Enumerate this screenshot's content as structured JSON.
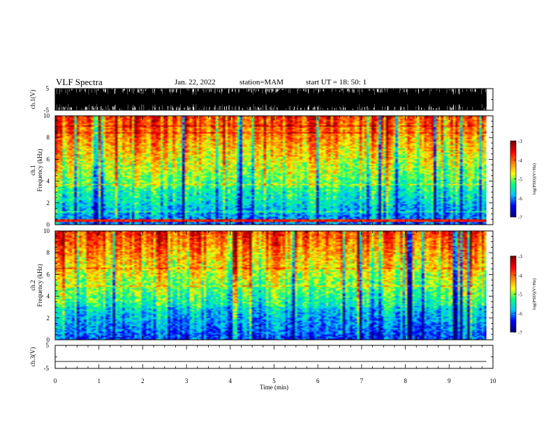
{
  "header": {
    "title": "VLF Spectra",
    "date": "Jan. 22, 2022",
    "station": "station=MAM",
    "start": "start UT =  18: 50: 1"
  },
  "chart_data": [
    {
      "type": "line",
      "panel": "ch1-waveform",
      "ylabel": "ch.1(V)",
      "ylim": [
        -5,
        5
      ],
      "yticks": [
        "5",
        "-5"
      ],
      "xlim": [
        0,
        10
      ],
      "description_values": "dense impulsive signal filling approximately -5 to 5 V across 0-9.85 min"
    },
    {
      "type": "heatmap",
      "panel": "ch1-spectrogram",
      "ylabel": "ch.1\nFrequency (kHz)",
      "ylabel_lines": [
        "ch.1",
        "Frequency (kHz)"
      ],
      "ylim": [
        0,
        10
      ],
      "yticks": [
        "0",
        "2",
        "4",
        "6",
        "8",
        "10"
      ],
      "xlim": [
        0,
        10
      ],
      "data_xmax": 9.85,
      "colorbar": {
        "label": "log(PSD)(V²/Hz)",
        "range": [
          -7,
          -3
        ],
        "ticks": [
          "-3",
          "-4",
          "-5",
          "-6",
          "-7"
        ]
      }
    },
    {
      "type": "heatmap",
      "panel": "ch2-spectrogram",
      "ylabel": "ch.2\nFrequency (kHz)",
      "ylabel_lines": [
        "ch.2",
        "Frequency (kHz)"
      ],
      "ylim": [
        0,
        10
      ],
      "yticks": [
        "0",
        "2",
        "4",
        "6",
        "8",
        "10"
      ],
      "xlim": [
        0,
        10
      ],
      "data_xmax": 9.85,
      "colorbar": {
        "label": "log(PSD)(V²/Hz)",
        "range": [
          -7,
          -3
        ],
        "ticks": [
          "-3",
          "-4",
          "-5",
          "-6",
          "-7"
        ]
      }
    },
    {
      "type": "line",
      "panel": "ch3-waveform",
      "ylabel": "ch.3(V)",
      "ylim": [
        -5,
        5
      ],
      "yticks": [
        "5",
        "-5"
      ],
      "xlim": [
        0,
        10
      ],
      "x": [
        0,
        9.85
      ],
      "y": [
        -2,
        -2
      ],
      "xlabel": "Time (min)",
      "xticks": [
        "0",
        "1",
        "2",
        "3",
        "4",
        "5",
        "6",
        "7",
        "8",
        "9",
        "10"
      ]
    }
  ],
  "colors": {
    "colormap": [
      "#00007f",
      "#0000ff",
      "#00c8ff",
      "#00ff80",
      "#ffff00",
      "#ff8000",
      "#ff0000",
      "#7f0000"
    ]
  }
}
